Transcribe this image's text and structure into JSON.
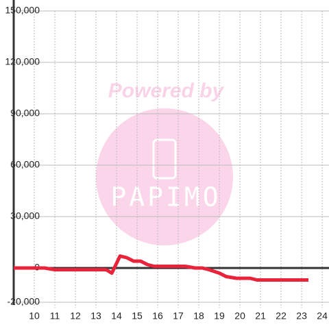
{
  "chart_data": {
    "type": "line",
    "watermark": {
      "top": "Powered by",
      "brand": "PAPIMO"
    },
    "x": [
      9,
      10.5,
      11,
      13.5,
      13.77,
      14.17,
      14.5,
      14.83,
      15.17,
      15.5,
      15.83,
      17.33,
      17.83,
      18.17,
      18.5,
      19,
      19.33,
      19.83,
      20.5,
      20.83,
      23.33
    ],
    "series": [
      {
        "color": "#e8233a",
        "values": [
          0,
          0,
          -1000,
          -1000,
          -3000,
          7000,
          6000,
          4000,
          4000,
          2000,
          1000,
          1000,
          0,
          0,
          -1000,
          -3000,
          -5000,
          -6000,
          -6000,
          -7000,
          -7000
        ]
      }
    ],
    "xlim": [
      9,
      24.33
    ],
    "xticks": [
      10,
      11,
      12,
      13,
      14,
      15,
      16,
      17,
      18,
      19,
      20,
      21,
      22,
      23,
      24
    ],
    "ylim": [
      -20000,
      150000
    ],
    "yticks": [
      {
        "value": -20000,
        "label": "-20,000"
      },
      0,
      {
        "value": 30000,
        "label": "30,000"
      },
      {
        "value": 60000,
        "label": "60,000"
      },
      {
        "value": 90000,
        "label": "90,000"
      },
      {
        "value": 120000,
        "label": "120,000"
      },
      {
        "value": 150000,
        "label": "150,000"
      }
    ],
    "grid": true
  }
}
